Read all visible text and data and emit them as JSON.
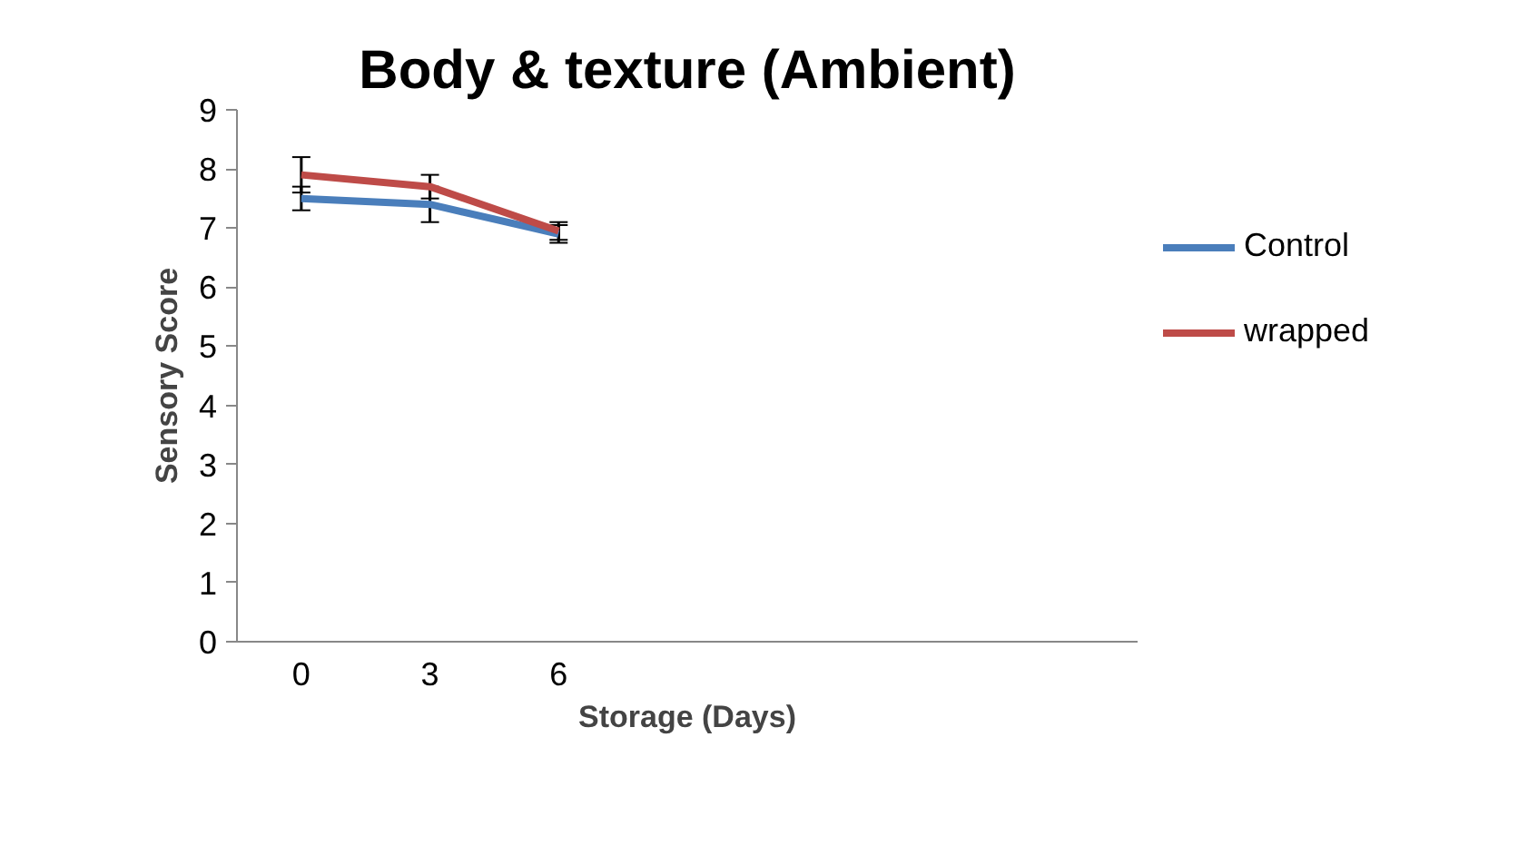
{
  "chart_data": {
    "type": "line",
    "title": "Body & texture (Ambient)",
    "xlabel": "Storage (Days)",
    "ylabel": "Sensory Score",
    "categories": [
      "0",
      "3",
      "6",
      null,
      null,
      null,
      null
    ],
    "series": [
      {
        "name": "Control",
        "color": "#4a7ebb",
        "values": [
          7.5,
          7.4,
          6.9,
          null,
          null,
          null,
          null
        ],
        "errors": [
          0.2,
          0.3,
          0.15,
          null,
          null,
          null,
          null
        ]
      },
      {
        "name": "wrapped",
        "color": "#be4b48",
        "values": [
          7.9,
          7.7,
          6.95,
          null,
          null,
          null,
          null
        ],
        "errors": [
          0.3,
          0.2,
          0.15,
          null,
          null,
          null,
          null
        ]
      }
    ],
    "ylim": [
      0,
      9
    ],
    "yticks": [
      0,
      1,
      2,
      3,
      4,
      5,
      6,
      7,
      8,
      9
    ],
    "grid": false,
    "legend": "right",
    "marker": "none"
  }
}
